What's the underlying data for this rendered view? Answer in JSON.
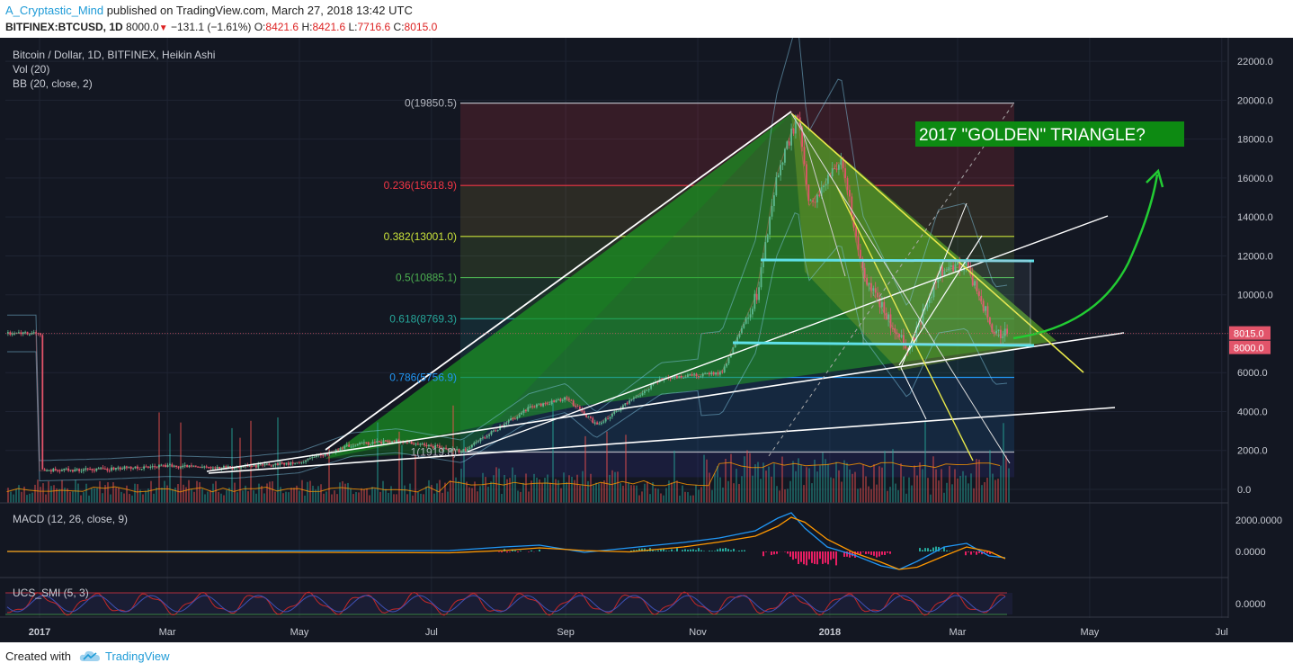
{
  "header": {
    "author": "A_Cryptastic_Mind",
    "published": "published on TradingView.com, March 27, 2018 13:42 UTC",
    "symbol": "BITFINEX:BTCUSD, 1D",
    "last": "8000.0",
    "change": "−131.1 (−1.61%)",
    "open_label": "O:",
    "open": "8421.6",
    "high_label": "H:",
    "high": "8421.6",
    "low_label": "L:",
    "low": "7716.6",
    "close_label": "C:",
    "close": "8015.0",
    "colors": {
      "down": "#dd2222",
      "author": "#1e9bd7"
    }
  },
  "legend": {
    "main": "Bitcoin / Dollar, 1D, BITFINEX, Heikin Ashi",
    "vol": "Vol (20)",
    "bb": "BB (20, close, 2)"
  },
  "annotation": {
    "text": "2017 \"GOLDEN\" TRIANGLE?",
    "bg": "#0d8a12"
  },
  "footer": {
    "created_with": "Created with",
    "brand": "TradingView"
  },
  "chart_data": [
    {
      "type": "candlestick",
      "style": "Heikin Ashi",
      "title": "Bitcoin / Dollar, 1D, BITFINEX, Heikin Ashi",
      "x_tick_labels": [
        "2017",
        "Mar",
        "May",
        "Jul",
        "Sep",
        "Nov",
        "2018",
        "Mar",
        "May",
        "Jul"
      ],
      "y_tick_labels": [
        "22000.0",
        "20000.0",
        "18000.0",
        "16000.0",
        "14000.0",
        "12000.0",
        "10000.0",
        "8000.0",
        "6000.0",
        "4000.0",
        "2000.0",
        "0.0"
      ],
      "ylim": [
        0,
        22000
      ],
      "price_markers": [
        "8015.0",
        "8000.0"
      ],
      "approx_closes": [
        {
          "date": "2017-01-01",
          "close": 960
        },
        {
          "date": "2017-02-01",
          "close": 1050
        },
        {
          "date": "2017-03-01",
          "close": 1200
        },
        {
          "date": "2017-04-01",
          "close": 1100
        },
        {
          "date": "2017-05-01",
          "close": 1400
        },
        {
          "date": "2017-05-25",
          "close": 2300
        },
        {
          "date": "2017-06-15",
          "close": 2500
        },
        {
          "date": "2017-07-15",
          "close": 1950
        },
        {
          "date": "2017-08-15",
          "close": 4200
        },
        {
          "date": "2017-09-01",
          "close": 4700
        },
        {
          "date": "2017-09-15",
          "close": 3300
        },
        {
          "date": "2017-10-15",
          "close": 5700
        },
        {
          "date": "2017-11-12",
          "close": 6000
        },
        {
          "date": "2017-11-28",
          "close": 10000
        },
        {
          "date": "2017-12-07",
          "close": 16000
        },
        {
          "date": "2017-12-17",
          "close": 19300
        },
        {
          "date": "2017-12-22",
          "close": 14500
        },
        {
          "date": "2018-01-06",
          "close": 17000
        },
        {
          "date": "2018-01-16",
          "close": 11000
        },
        {
          "date": "2018-02-06",
          "close": 7000
        },
        {
          "date": "2018-02-20",
          "close": 11200
        },
        {
          "date": "2018-03-05",
          "close": 11500
        },
        {
          "date": "2018-03-18",
          "close": 7900
        },
        {
          "date": "2018-03-27",
          "close": 8015
        }
      ],
      "fib_levels": [
        {
          "label": "0(19850.5)",
          "value": 19850.5,
          "color": "#b2b5be"
        },
        {
          "label": "0.236(15618.9)",
          "value": 15618.9,
          "color": "#f23645"
        },
        {
          "label": "0.382(13001.0)",
          "value": 13001.0,
          "color": "#c9e23a"
        },
        {
          "label": "0.5(10885.1)",
          "value": 10885.1,
          "color": "#4caf50"
        },
        {
          "label": "0.618(8769.3)",
          "value": 8769.3,
          "color": "#26a69a"
        },
        {
          "label": "0.786(5756.9)",
          "value": 5756.9,
          "color": "#2196f3"
        },
        {
          "label": "1(1919.8)",
          "value": 1919.8,
          "color": "#b2b5be"
        }
      ]
    },
    {
      "type": "line",
      "title": "MACD (12, 26, close, 9)",
      "y_tick_labels": [
        "2000.0000",
        "0.0000"
      ],
      "series": [
        {
          "name": "",
          "color": "#2196f3"
        },
        {
          "name": "",
          "color": "#ff9800"
        }
      ]
    },
    {
      "type": "line",
      "title": "UCS_SMI (5, 3)",
      "y_tick_labels": [
        "0.0000"
      ]
    }
  ]
}
